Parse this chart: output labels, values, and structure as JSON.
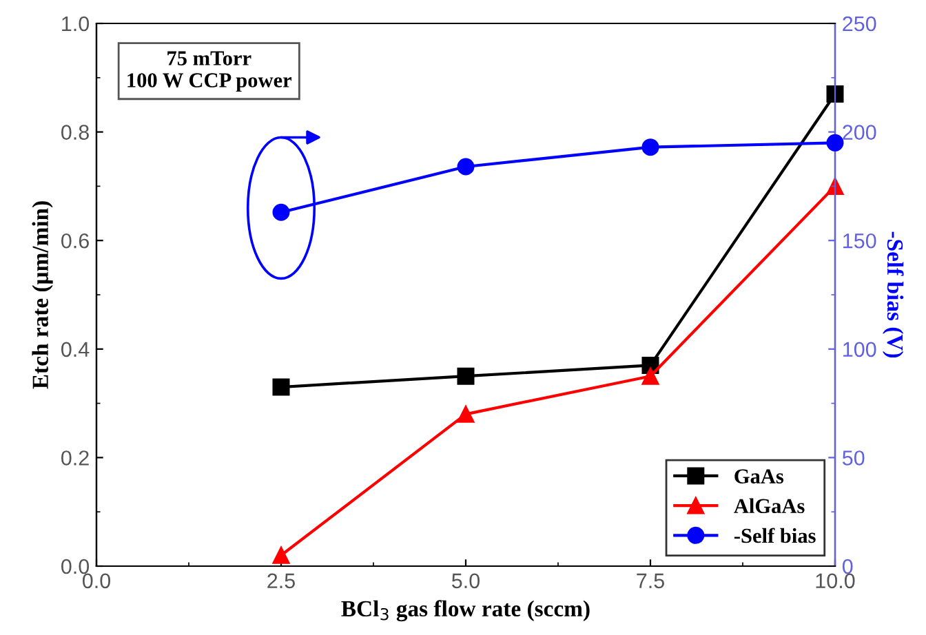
{
  "chart_data": {
    "type": "line",
    "xlabel": "BCl$_{3}$ gas flow rate (sccm)",
    "ylabel": "Etch rate (μm/min)",
    "y2label": "-Self bias (V)",
    "x": [
      2.5,
      5.0,
      7.5,
      10.0
    ],
    "series": [
      {
        "name": "GaAs",
        "color": "#000000",
        "marker": "square",
        "values": [
          0.33,
          0.35,
          0.37,
          0.87
        ]
      },
      {
        "name": "AlGaAs",
        "color": "#ff0000",
        "marker": "triangle",
        "values": [
          0.02,
          0.28,
          0.35,
          0.7
        ]
      },
      {
        "name": "-Self bias",
        "color": "#0000ff",
        "marker": "circle",
        "axis": "y2",
        "values": [
          163,
          184,
          193,
          195
        ]
      }
    ],
    "xlim": [
      0,
      10
    ],
    "xticks": [
      {
        "value": 0,
        "label": "0.0"
      },
      {
        "value": 2.5,
        "label": "2.5"
      },
      {
        "value": 5,
        "label": "5.0"
      },
      {
        "value": 7.5,
        "label": "7.5"
      },
      {
        "value": 10,
        "label": "10.0"
      }
    ],
    "ylim": [
      0,
      1
    ],
    "yticks": [
      {
        "value": 0,
        "label": "0.0"
      },
      {
        "value": 0.2,
        "label": "0.2"
      },
      {
        "value": 0.4,
        "label": "0.4"
      },
      {
        "value": 0.6,
        "label": "0.6"
      },
      {
        "value": 0.8,
        "label": "0.8"
      },
      {
        "value": 1,
        "label": "1.0"
      }
    ],
    "y2lim": [
      0,
      250
    ],
    "y2ticks": [
      0,
      50,
      100,
      150,
      200,
      250
    ],
    "annotations": [
      "75 mTorr\n100 W CCP power"
    ],
    "legend": "bottom right",
    "grid": false,
    "line_style": "solid"
  }
}
